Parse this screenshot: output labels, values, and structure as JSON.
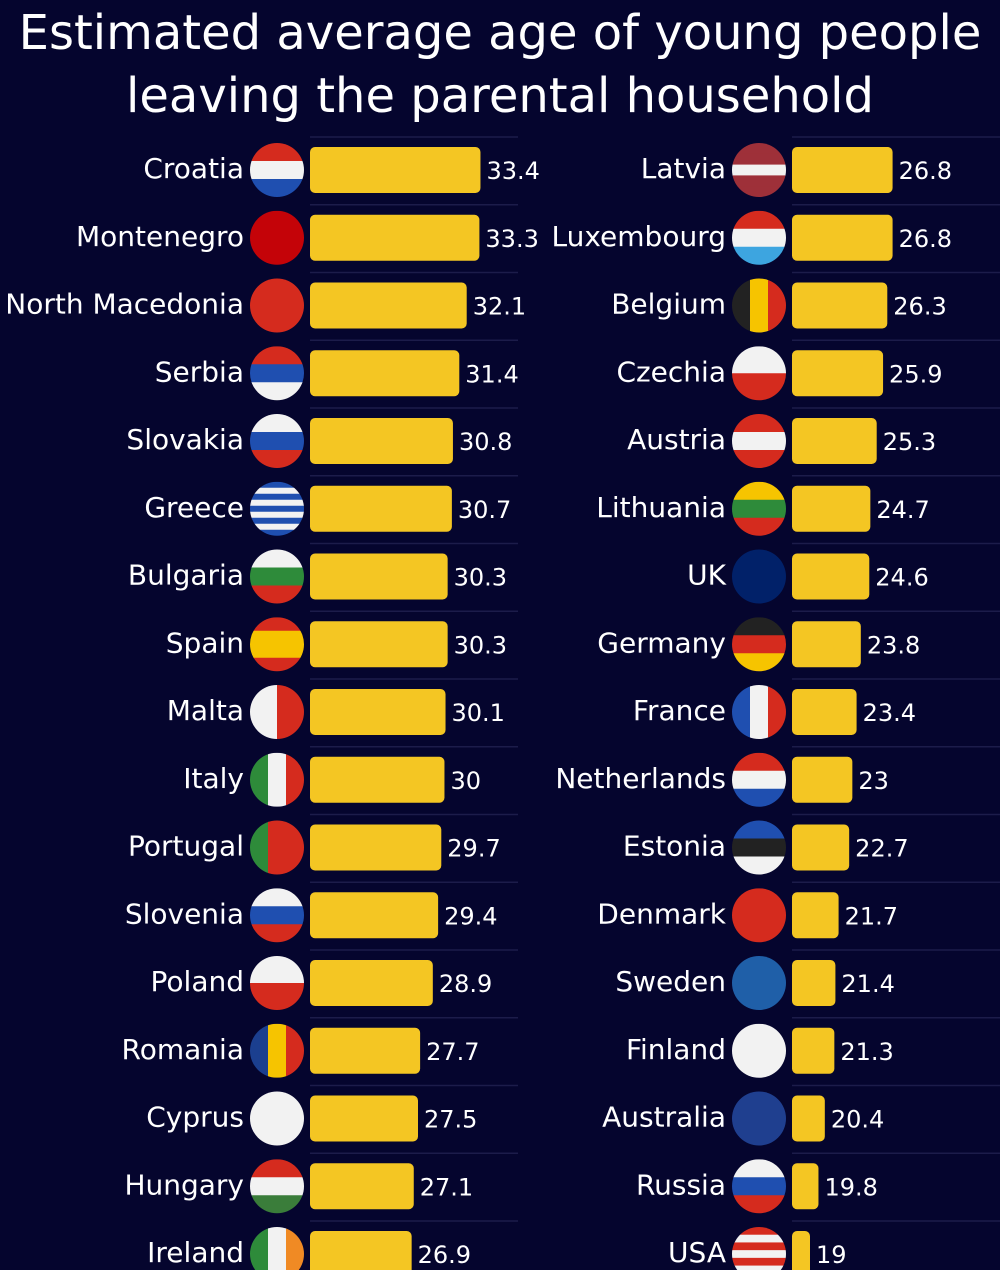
{
  "title": "Estimated average age of young people leaving the parental household",
  "chart_data": [
    {
      "type": "bar",
      "orientation": "horizontal",
      "color": "#f4c623",
      "xlim": [
        17.3,
        36
      ],
      "categories": [
        "Croatia",
        "Montenegro",
        "North Macedonia",
        "Serbia",
        "Slovakia",
        "Greece",
        "Bulgaria",
        "Spain",
        "Malta",
        "Italy",
        "Portugal",
        "Slovenia",
        "Poland",
        "Romania",
        "Cyprus",
        "Hungary",
        "Ireland"
      ],
      "values": [
        33.4,
        33.3,
        32.1,
        31.4,
        30.8,
        30.7,
        30.3,
        30.3,
        30.1,
        30,
        29.7,
        29.4,
        28.9,
        27.7,
        27.5,
        27.1,
        26.9
      ]
    },
    {
      "type": "bar",
      "orientation": "horizontal",
      "color": "#f4c623",
      "xlim": [
        17.3,
        36
      ],
      "categories": [
        "Latvia",
        "Luxembourg",
        "Belgium",
        "Czechia",
        "Austria",
        "Lithuania",
        "UK",
        "Germany",
        "France",
        "Netherlands",
        "Estonia",
        "Denmark",
        "Sweden",
        "Finland",
        "Australia",
        "Russia",
        "USA"
      ],
      "values": [
        26.8,
        26.8,
        26.3,
        25.9,
        25.3,
        24.7,
        24.6,
        23.8,
        23.4,
        23,
        22.7,
        21.7,
        21.4,
        21.3,
        20.4,
        19.8,
        19
      ]
    }
  ]
}
